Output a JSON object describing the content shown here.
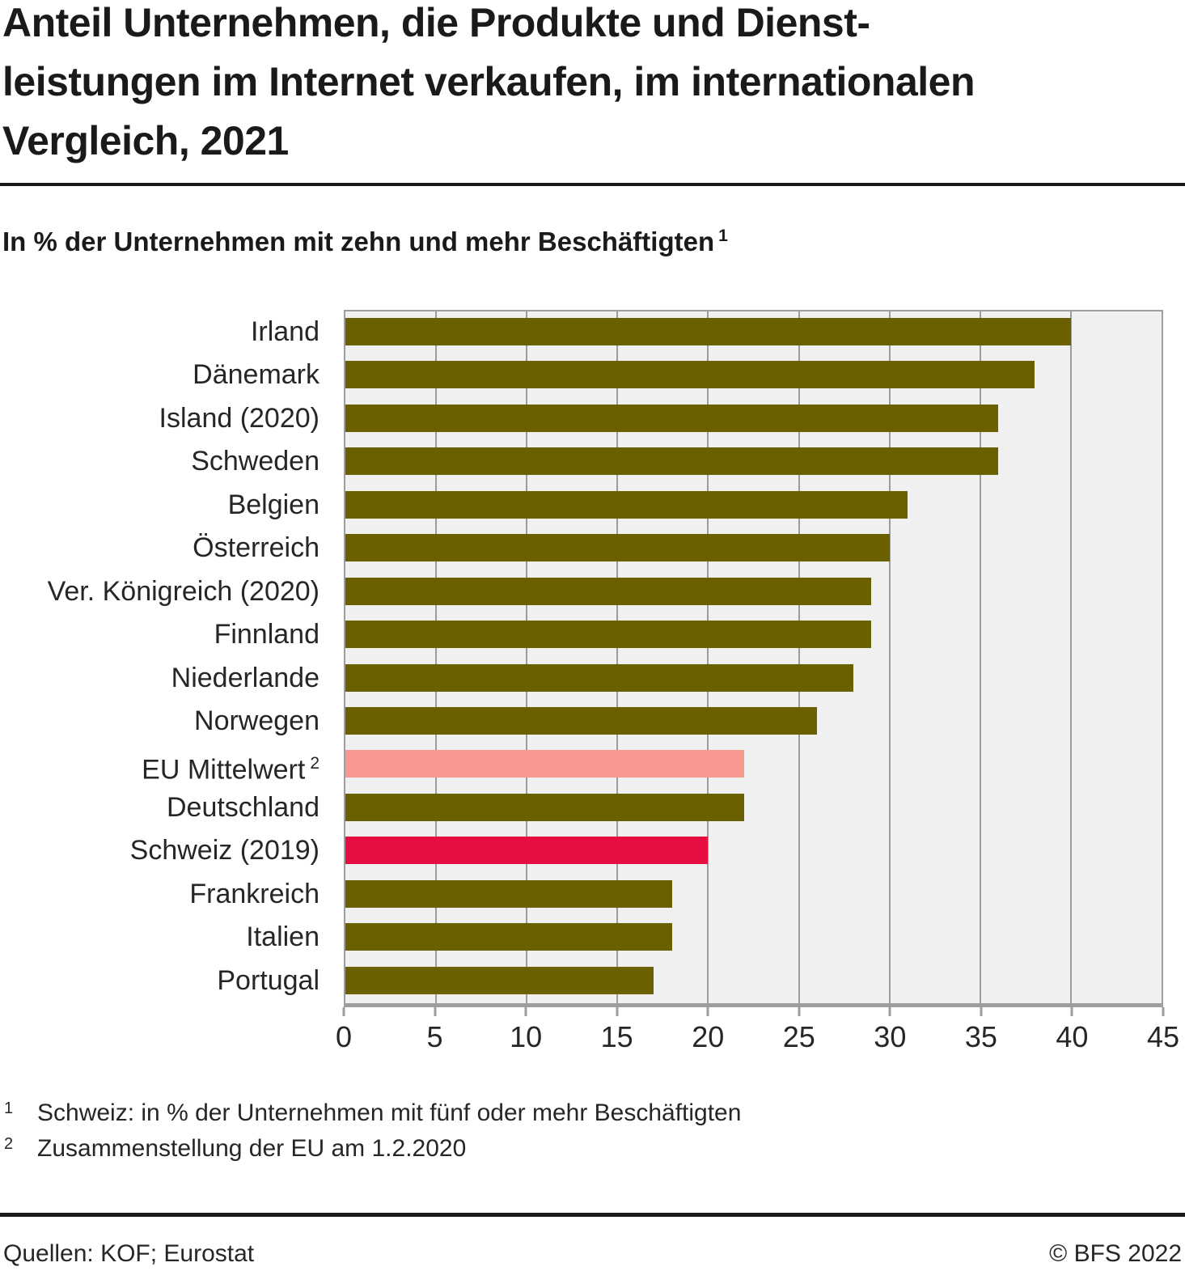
{
  "header": {
    "title_lines": [
      "Anteil Unternehmen, die Produkte und Dienst-",
      "leistungen im Internet verkaufen, im internationalen",
      "Vergleich, 2021"
    ],
    "subtitle": "In % der Unternehmen mit zehn und mehr Beschäftigten",
    "subtitle_footnote_marker": "1"
  },
  "chart_data": {
    "type": "bar",
    "orientation": "horizontal",
    "title": "Anteil Unternehmen, die Produkte und Dienstleistungen im Internet verkaufen, im internationalen Vergleich, 2021",
    "xlabel": "",
    "ylabel": "",
    "xlim": [
      0,
      45
    ],
    "x_ticks": [
      0,
      5,
      10,
      15,
      20,
      25,
      30,
      35,
      40,
      45
    ],
    "grid": "vertical",
    "unit": "% der Unternehmen",
    "bars": [
      {
        "label": "Irland",
        "sup": "",
        "value": 40,
        "color": "default"
      },
      {
        "label": "Dänemark",
        "sup": "",
        "value": 38,
        "color": "default"
      },
      {
        "label": "Island (2020)",
        "sup": "",
        "value": 36,
        "color": "default"
      },
      {
        "label": "Schweden",
        "sup": "",
        "value": 36,
        "color": "default"
      },
      {
        "label": "Belgien",
        "sup": "",
        "value": 31,
        "color": "default"
      },
      {
        "label": "Österreich",
        "sup": "",
        "value": 30,
        "color": "default"
      },
      {
        "label": "Ver. Königreich (2020)",
        "sup": "",
        "value": 29,
        "color": "default"
      },
      {
        "label": "Finnland",
        "sup": "",
        "value": 29,
        "color": "default"
      },
      {
        "label": "Niederlande",
        "sup": "",
        "value": 28,
        "color": "default"
      },
      {
        "label": "Norwegen",
        "sup": "",
        "value": 26,
        "color": "default"
      },
      {
        "label": "EU Mittelwert",
        "sup": "2",
        "value": 22,
        "color": "eu_average"
      },
      {
        "label": "Deutschland",
        "sup": "",
        "value": 22,
        "color": "default"
      },
      {
        "label": "Schweiz (2019)",
        "sup": "",
        "value": 20,
        "color": "switzerland"
      },
      {
        "label": "Frankreich",
        "sup": "",
        "value": 18,
        "color": "default"
      },
      {
        "label": "Italien",
        "sup": "",
        "value": 18,
        "color": "default"
      },
      {
        "label": "Portugal",
        "sup": "",
        "value": 17,
        "color": "default"
      }
    ],
    "colors": {
      "default": "#6a6000",
      "eu_average": "#f69890",
      "switzerland": "#e60d43",
      "plot_background": "#f0f0f0",
      "gridline": "#9c9c9c",
      "axis": "#9e9e9e"
    }
  },
  "footnotes": [
    {
      "marker": "1",
      "text": "Schweiz: in % der Unternehmen mit fünf oder mehr Beschäftigten"
    },
    {
      "marker": "2",
      "text": "Zusammenstellung der EU am 1.2.2020"
    }
  ],
  "footer": {
    "source": "Quellen: KOF; Eurostat",
    "copyright": "© BFS 2022"
  }
}
